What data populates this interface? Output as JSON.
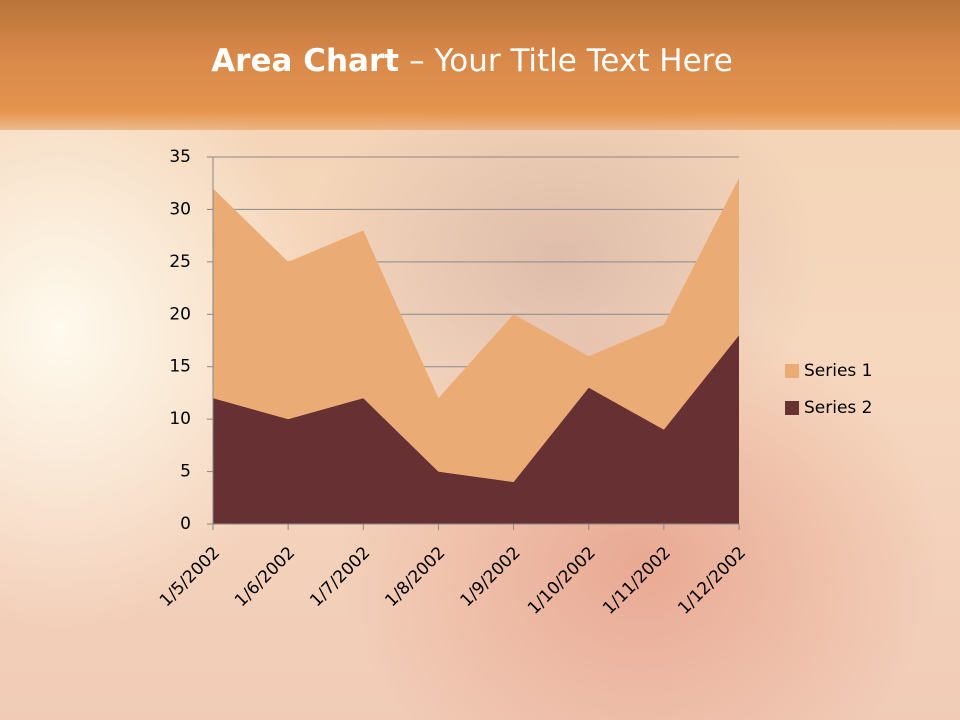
{
  "chart_data": {
    "type": "stacked-area",
    "title": [
      "Area Chart",
      "– Your Title Text Here"
    ],
    "categories": [
      "1/5/2002",
      "1/6/2002",
      "1/7/2002",
      "1/8/2002",
      "1/9/2002",
      "1/10/2002",
      "1/11/2002",
      "1/12/2002"
    ],
    "series": [
      {
        "name": "Series 1",
        "color": "#ebab74",
        "values": [
          20,
          15,
          16,
          7,
          16,
          3,
          10,
          15
        ]
      },
      {
        "name": "Series 2",
        "color": "#673032",
        "values": [
          12,
          10,
          12,
          5,
          4,
          13,
          9,
          18
        ]
      }
    ],
    "ylim": [
      0,
      35
    ],
    "yticks": [
      0,
      5,
      10,
      15,
      20,
      25,
      30,
      35
    ],
    "grid": true,
    "legend": "right"
  }
}
